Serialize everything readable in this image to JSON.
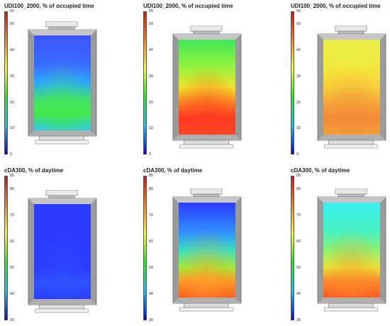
{
  "colors": {
    "scale": [
      "#0000ff",
      "#00c8ff",
      "#00ff00",
      "#ffff00",
      "#ff8000",
      "#ff0000"
    ],
    "frame": "#9a9a9a",
    "frame_dark": "#6e6e6e"
  },
  "panels": [
    {
      "title": "UDI100_2000, % of occupied time",
      "scale_ticks": [
        "55",
        "50",
        "40",
        "30",
        "20",
        "10",
        "0"
      ],
      "map_stops": [
        "#3a55ff",
        "#3a6cff",
        "#2fa6ff",
        "#3ee36a",
        "#44e84a",
        "#2fc4ff"
      ]
    },
    {
      "title": "UDI100_2000, % of occupied time",
      "scale_ticks": [
        "55",
        "50",
        "40",
        "30",
        "20",
        "10",
        "0"
      ],
      "map_stops": [
        "#3fe85a",
        "#9af23c",
        "#f0e22a",
        "#ff7a22",
        "#ff3a20",
        "#ff4a28"
      ]
    },
    {
      "title": "UDI100_2000, % of occupied time",
      "scale_ticks": [
        "55",
        "50",
        "40",
        "30",
        "20",
        "10",
        "0"
      ],
      "map_stops": [
        "#e9f04a",
        "#f4e83c",
        "#f7cf3a",
        "#f6a63a",
        "#f48a38",
        "#f0a23a"
      ]
    },
    {
      "title": "cDA300, % of daytime",
      "scale_ticks": [
        "85",
        "80",
        "70",
        "60",
        "50",
        "40",
        "30"
      ],
      "map_stops": [
        "#2a3cff",
        "#2a3cff",
        "#2a3cff",
        "#2a3cff",
        "#2e52ff",
        "#2a3cff"
      ]
    },
    {
      "title": "cDA300, % of daytime",
      "scale_ticks": [
        "85",
        "80",
        "70",
        "60",
        "50",
        "40",
        "30"
      ],
      "map_stops": [
        "#2a3cff",
        "#2f8cff",
        "#38e0c0",
        "#9ef03a",
        "#ff9a28",
        "#ff5a22"
      ]
    },
    {
      "title": "cDA300, % of daytime",
      "scale_ticks": [
        "85",
        "80",
        "70",
        "60",
        "50",
        "40",
        "30"
      ],
      "map_stops": [
        "#38f0f0",
        "#48f2c0",
        "#8cf270",
        "#e6ec38",
        "#ff8a2a",
        "#ff5a24"
      ]
    }
  ]
}
